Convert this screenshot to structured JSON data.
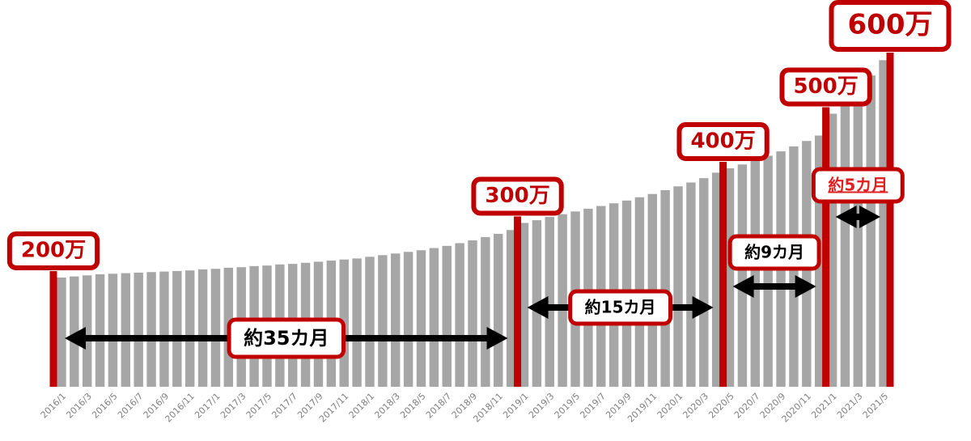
{
  "chart_data": {
    "type": "bar",
    "categories": [
      "2016/1",
      null,
      "2016/3",
      null,
      "2016/5",
      null,
      "2016/7",
      null,
      "2016/9",
      null,
      "2016/11",
      null,
      "2017/1",
      null,
      "2017/3",
      null,
      "2017/5",
      null,
      "2017/7",
      null,
      "2017/9",
      null,
      "2017/11",
      null,
      "2018/1",
      null,
      "2018/3",
      null,
      "2018/5",
      null,
      "2018/7",
      null,
      "2018/9",
      null,
      "2018/11",
      null,
      "2019/1",
      null,
      "2019/3",
      null,
      "2019/5",
      null,
      "2019/7",
      null,
      "2019/9",
      null,
      "2019/11",
      null,
      "2020/1",
      null,
      "2020/3",
      null,
      "2020/5",
      null,
      "2020/7",
      null,
      "2020/9",
      null,
      "2020/11",
      null,
      "2021/1",
      null,
      "2021/3",
      null,
      "2021/5"
    ],
    "values": [
      200,
      202,
      204,
      206,
      207,
      208,
      209,
      210,
      211,
      212,
      213,
      215,
      216,
      218,
      219,
      221,
      222,
      224,
      225,
      227,
      229,
      231,
      233,
      235,
      238,
      241,
      244,
      247,
      250,
      254,
      258,
      263,
      268,
      274,
      280,
      287,
      300,
      305,
      311,
      316,
      321,
      326,
      331,
      336,
      341,
      347,
      353,
      360,
      367,
      374,
      382,
      392,
      400,
      407,
      415,
      423,
      431,
      440,
      450,
      460,
      500,
      522,
      545,
      570,
      598
    ],
    "color": "#a6a6a6",
    "ylim": [
      0,
      700
    ],
    "milestones": [
      {
        "value": 200,
        "label": "200万"
      },
      {
        "value": 300,
        "label": "300万"
      },
      {
        "value": 400,
        "label": "400万"
      },
      {
        "value": 500,
        "label": "500万"
      },
      {
        "value": 600,
        "label": "600万"
      }
    ],
    "milestone_color": "#c00000",
    "intervals": [
      {
        "label": "約35カ月",
        "color": "#000000"
      },
      {
        "label": "約15カ月",
        "color": "#000000"
      },
      {
        "label": "約9カ月",
        "color": "#000000"
      },
      {
        "label": "約5カ月",
        "color": "#e02020"
      }
    ]
  }
}
